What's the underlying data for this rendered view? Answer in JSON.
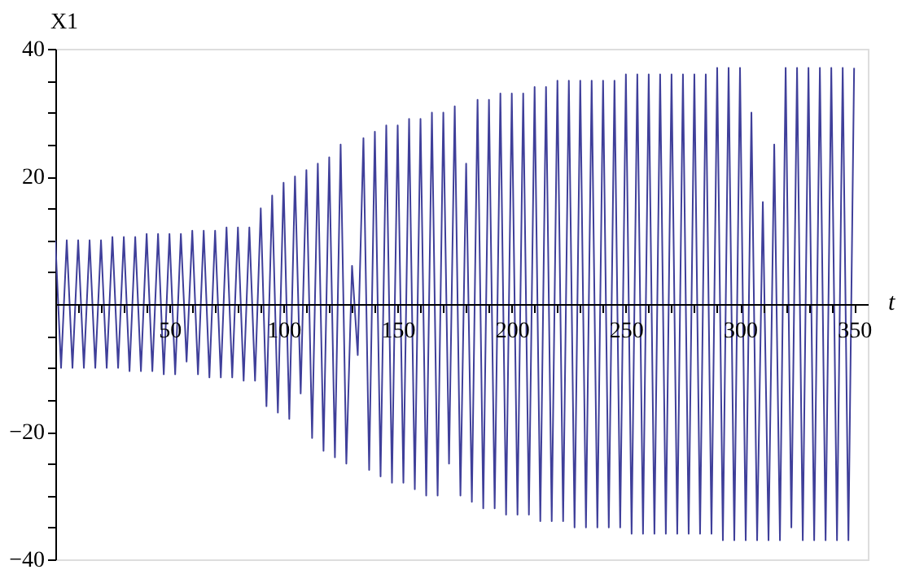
{
  "chart_data": {
    "type": "line",
    "xlabel": "t",
    "ylabel": "X1",
    "color": "#3f3f9a",
    "line_style": "solid",
    "xlim": [
      0,
      356
    ],
    "ylim": [
      -40,
      40
    ],
    "xticks": [
      {
        "value": 10,
        "label": null
      },
      {
        "value": 20,
        "label": null
      },
      {
        "value": 30,
        "label": null
      },
      {
        "value": 40,
        "label": null
      },
      50,
      {
        "value": 60,
        "label": null
      },
      {
        "value": 70,
        "label": null
      },
      {
        "value": 80,
        "label": null
      },
      {
        "value": 90,
        "label": null
      },
      100,
      {
        "value": 110,
        "label": null
      },
      {
        "value": 120,
        "label": null
      },
      {
        "value": 130,
        "label": null
      },
      {
        "value": 140,
        "label": null
      },
      150,
      {
        "value": 160,
        "label": null
      },
      {
        "value": 170,
        "label": null
      },
      {
        "value": 180,
        "label": null
      },
      {
        "value": 190,
        "label": null
      },
      200,
      {
        "value": 210,
        "label": null
      },
      {
        "value": 220,
        "label": null
      },
      {
        "value": 230,
        "label": null
      },
      {
        "value": 240,
        "label": null
      },
      250,
      {
        "value": 260,
        "label": null
      },
      {
        "value": 270,
        "label": null
      },
      {
        "value": 280,
        "label": null
      },
      {
        "value": 290,
        "label": null
      },
      300,
      {
        "value": 310,
        "label": null
      },
      {
        "value": 320,
        "label": null
      },
      {
        "value": 330,
        "label": null
      },
      {
        "value": 340,
        "label": null
      },
      350
    ],
    "yticks": [
      -40,
      {
        "value": -35,
        "label": null
      },
      {
        "value": -30,
        "label": null
      },
      {
        "value": -25,
        "label": null
      },
      -20,
      {
        "value": -15,
        "label": null
      },
      {
        "value": -10,
        "label": null
      },
      {
        "value": -5,
        "label": null
      },
      {
        "value": 5,
        "label": null
      },
      {
        "value": 10,
        "label": null
      },
      {
        "value": 15,
        "label": null
      },
      20,
      {
        "value": 25,
        "label": null
      },
      {
        "value": 30,
        "label": null
      },
      {
        "value": 35,
        "label": null
      },
      40
    ],
    "x": [
      0,
      2.5,
      5,
      7.5,
      10,
      12.5,
      15,
      17.5,
      20,
      22.5,
      25,
      27.5,
      30,
      32.5,
      35,
      37.5,
      40,
      42.5,
      45,
      47.5,
      50,
      52.5,
      55,
      57.5,
      60,
      62.5,
      65,
      67.5,
      70,
      72.5,
      75,
      77.5,
      80,
      82.5,
      85,
      87.5,
      90,
      92.5,
      95,
      97.5,
      100,
      102.5,
      105,
      107.5,
      110,
      112.5,
      115,
      117.5,
      120,
      122.5,
      125,
      127.5,
      130,
      132.5,
      135,
      137.5,
      140,
      142.5,
      145,
      147.5,
      150,
      152.5,
      155,
      157.5,
      160,
      162.5,
      165,
      167.5,
      170,
      172.5,
      175,
      177.5,
      180,
      182.5,
      185,
      187.5,
      190,
      192.5,
      195,
      197.5,
      200,
      202.5,
      205,
      207.5,
      210,
      212.5,
      215,
      217.5,
      220,
      222.5,
      225,
      227.5,
      230,
      232.5,
      235,
      237.5,
      240,
      242.5,
      245,
      247.5,
      250,
      252.5,
      255,
      257.5,
      260,
      262.5,
      265,
      267.5,
      270,
      272.5,
      275,
      277.5,
      280,
      282.5,
      285,
      287.5,
      290,
      292.5,
      295,
      297.5,
      300,
      302.5,
      305,
      307.5,
      310,
      312.5,
      315,
      317.5,
      320,
      322.5,
      325,
      327.5,
      330,
      332.5,
      335,
      337.5,
      340,
      342.5,
      345,
      347.5,
      350
    ],
    "values": [
      10,
      -10,
      10,
      -10,
      10,
      -10,
      10,
      -10,
      10,
      -10,
      10.5,
      -10,
      10.5,
      -10.5,
      10.5,
      -10.5,
      11,
      -10.5,
      11,
      -11,
      11,
      -11,
      11,
      -9,
      11.5,
      -11,
      11.5,
      -11.5,
      11.5,
      -11.5,
      12,
      -11.5,
      12,
      -12,
      12,
      -12,
      15,
      -16,
      17,
      -17,
      19,
      -18,
      20,
      -14,
      21,
      -21,
      22,
      -23,
      23,
      -24,
      25,
      -25,
      6,
      -8,
      26,
      -26,
      27,
      -27,
      28,
      -28,
      28,
      -28,
      29,
      -29,
      29,
      -30,
      30,
      -30,
      30,
      -25,
      31,
      -30,
      22,
      -31,
      32,
      -32,
      32,
      -32,
      33,
      -33,
      33,
      -33,
      33,
      -33,
      34,
      -34,
      34,
      -34,
      35,
      -34,
      35,
      -35,
      35,
      -35,
      35,
      -35,
      35,
      -35,
      35,
      -35,
      36,
      -36,
      36,
      -36,
      36,
      -36,
      36,
      -36,
      36,
      -36,
      36,
      -36,
      36,
      -36,
      36,
      -36,
      37,
      -37,
      37,
      -37,
      37,
      -37,
      30,
      -37,
      16,
      -37,
      25,
      -37,
      37,
      -35,
      37,
      -37,
      37,
      -37,
      37,
      -37,
      37,
      -37,
      37,
      -37,
      37
    ]
  }
}
